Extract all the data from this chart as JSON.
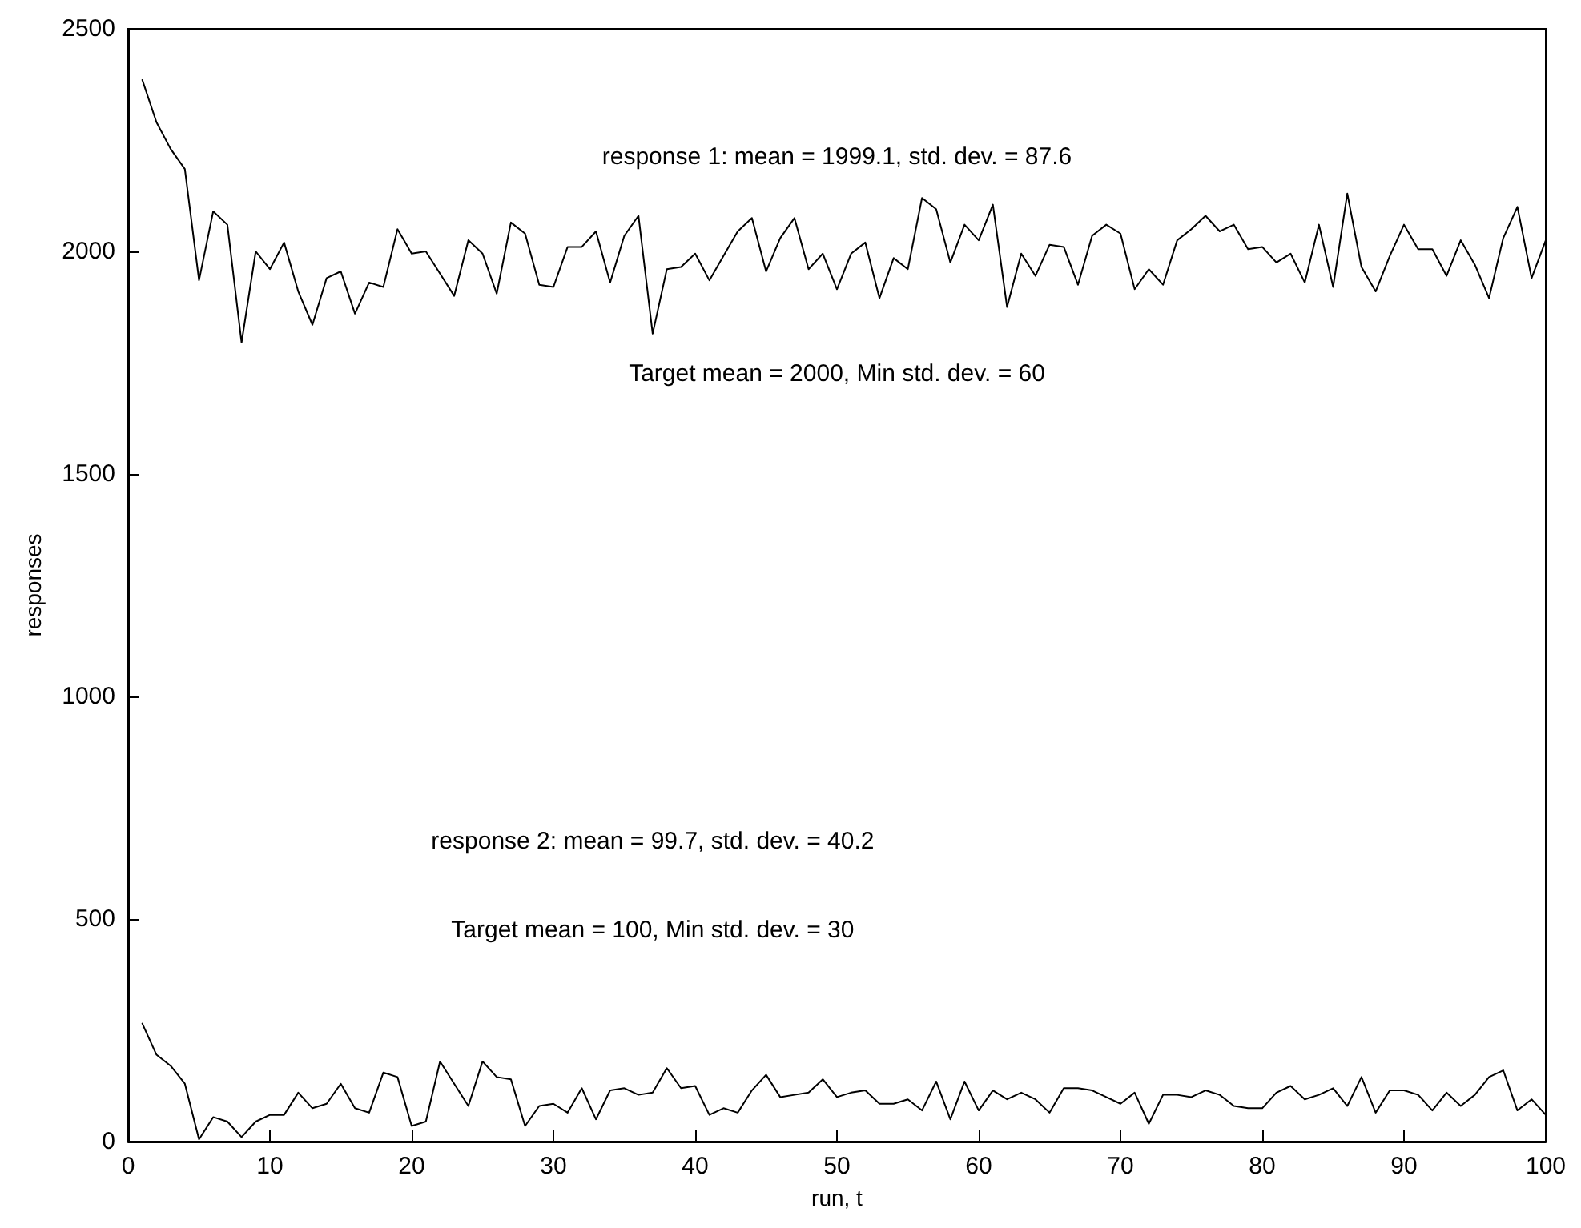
{
  "chart_data": {
    "type": "line",
    "xlabel": "run, t",
    "ylabel": "responses",
    "x": [
      1,
      2,
      3,
      4,
      5,
      6,
      7,
      8,
      9,
      10,
      11,
      12,
      13,
      14,
      15,
      16,
      17,
      18,
      19,
      20,
      21,
      22,
      23,
      24,
      25,
      26,
      27,
      28,
      29,
      30,
      31,
      32,
      33,
      34,
      35,
      36,
      37,
      38,
      39,
      40,
      41,
      42,
      43,
      44,
      45,
      46,
      47,
      48,
      49,
      50,
      51,
      52,
      53,
      54,
      55,
      56,
      57,
      58,
      59,
      60,
      61,
      62,
      63,
      64,
      65,
      66,
      67,
      68,
      69,
      70,
      71,
      72,
      73,
      74,
      75,
      76,
      77,
      78,
      79,
      80,
      81,
      82,
      83,
      84,
      85,
      86,
      87,
      88,
      89,
      90,
      91,
      92,
      93,
      94,
      95,
      96,
      97,
      98,
      99,
      100
    ],
    "series": [
      {
        "color": "#000000",
        "values": [
          2385,
          2290,
          2230,
          2185,
          1935,
          2090,
          2060,
          1795,
          2000,
          1960,
          2020,
          1910,
          1835,
          1940,
          1955,
          1860,
          1930,
          1920,
          2050,
          1995,
          2000,
          1950,
          1900,
          2025,
          1995,
          1905,
          2065,
          2040,
          1925,
          1920,
          2010,
          2010,
          2045,
          1930,
          2035,
          2080,
          1815,
          1960,
          1965,
          1995,
          1935,
          1990,
          2045,
          2075,
          1955,
          2030,
          2075,
          1960,
          1995,
          1915,
          1995,
          2020,
          1895,
          1985,
          1960,
          2120,
          2095,
          1975,
          2060,
          2025,
          2105,
          1875,
          1995,
          1945,
          2015,
          2010,
          1925,
          2035,
          2060,
          2040,
          1915,
          1960,
          1925,
          2025,
          2050,
          2080,
          2045,
          2060,
          2005,
          2010,
          1975,
          1995,
          1930,
          2060,
          1920,
          2130,
          1965,
          1910,
          1990,
          2060,
          2005,
          2005,
          1945,
          2025,
          1970,
          1895,
          2030,
          2100,
          1940,
          2025
        ]
      },
      {
        "color": "#000000",
        "values": [
          265,
          195,
          170,
          130,
          5,
          55,
          45,
          10,
          45,
          60,
          60,
          110,
          75,
          85,
          130,
          75,
          65,
          155,
          145,
          35,
          45,
          180,
          130,
          80,
          180,
          145,
          140,
          35,
          80,
          85,
          65,
          120,
          50,
          115,
          120,
          105,
          110,
          165,
          120,
          125,
          60,
          75,
          65,
          115,
          150,
          100,
          105,
          110,
          140,
          100,
          110,
          115,
          85,
          85,
          95,
          70,
          135,
          50,
          135,
          70,
          115,
          95,
          110,
          95,
          65,
          120,
          120,
          115,
          100,
          85,
          110,
          40,
          105,
          105,
          100,
          115,
          105,
          80,
          75,
          75,
          110,
          125,
          95,
          105,
          120,
          80,
          145,
          65,
          115,
          115,
          105,
          70,
          110,
          80,
          105,
          145,
          160,
          70,
          95,
          60
        ]
      }
    ],
    "annotations": [
      "response 1: mean = 1999.1, std. dev. = 87.6",
      "Target mean = 2000, Min std. dev. = 60",
      "response 2: mean = 99.7, std. dev. = 40.2",
      "Target mean = 100, Min std. dev. = 30"
    ],
    "xlim": [
      0,
      100
    ],
    "xticks": [
      0,
      10,
      20,
      30,
      40,
      50,
      60,
      70,
      80,
      90,
      100
    ],
    "ylim": [
      0,
      2500
    ],
    "yticks": [
      0,
      500,
      1000,
      1500,
      2000,
      2500
    ],
    "grid": false,
    "marker": "none",
    "line_style": "solid"
  }
}
